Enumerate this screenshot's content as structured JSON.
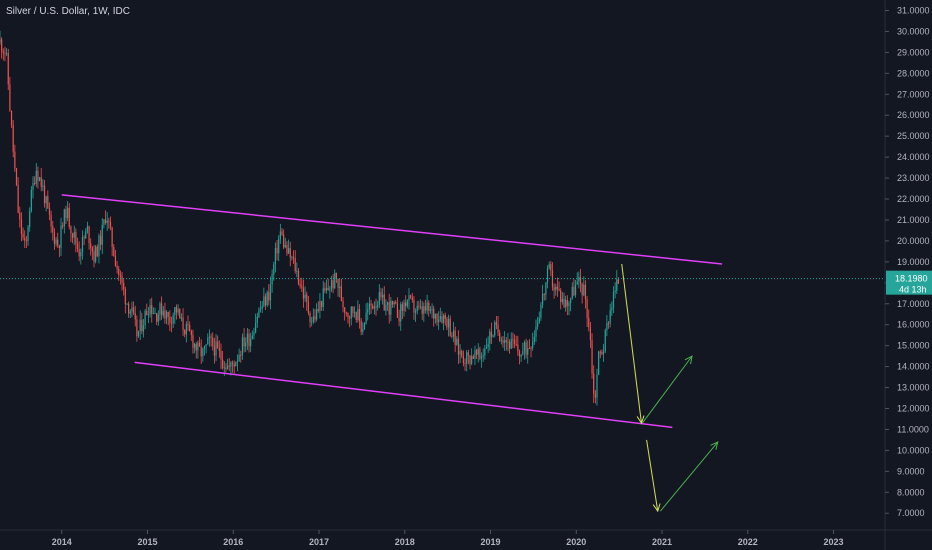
{
  "title": "Silver / U.S. Dollar, 1W, IDC",
  "colors": {
    "background": "#131722",
    "up": "#26a69a",
    "down": "#ef5350",
    "channel": "#e040fb",
    "arrow_down": "#d4e157",
    "arrow_up": "#4caf50",
    "price_line": "#26a69a",
    "axis_text": "#b2b5be"
  },
  "chart_data": {
    "type": "candlestick",
    "symbol": "Silver / U.S. Dollar",
    "interval": "1W",
    "source": "IDC",
    "y_ticks": [
      "7.0000",
      "8.0000",
      "9.0000",
      "10.0000",
      "11.0000",
      "12.0000",
      "13.0000",
      "14.0000",
      "15.0000",
      "16.0000",
      "17.0000",
      "18.0000",
      "19.0000",
      "20.0000",
      "21.0000",
      "22.0000",
      "23.0000",
      "24.0000",
      "25.0000",
      "26.0000",
      "27.0000",
      "28.0000",
      "29.0000",
      "30.0000",
      "31.0000"
    ],
    "x_ticks": [
      "2014",
      "2015",
      "2016",
      "2017",
      "2018",
      "2019",
      "2020",
      "2021",
      "2022",
      "2023"
    ],
    "ylim": [
      6.2,
      31.5
    ],
    "xlim": [
      2013.28,
      2023.6
    ],
    "last_price": "18.1980",
    "countdown": "4d 13h",
    "price_anchors": [
      [
        2013.28,
        29.5
      ],
      [
        2013.35,
        29.0
      ],
      [
        2013.42,
        25.0
      ],
      [
        2013.5,
        21.0
      ],
      [
        2013.58,
        19.5
      ],
      [
        2013.62,
        21.5
      ],
      [
        2013.7,
        23.5
      ],
      [
        2013.78,
        22.5
      ],
      [
        2013.88,
        20.5
      ],
      [
        2013.96,
        19.8
      ],
      [
        2014.05,
        21.5
      ],
      [
        2014.12,
        20.5
      ],
      [
        2014.2,
        19.5
      ],
      [
        2014.3,
        20.5
      ],
      [
        2014.38,
        19.2
      ],
      [
        2014.46,
        20.2
      ],
      [
        2014.52,
        21.4
      ],
      [
        2014.58,
        20.0
      ],
      [
        2014.66,
        18.5
      ],
      [
        2014.75,
        17.2
      ],
      [
        2014.82,
        16.5
      ],
      [
        2014.88,
        15.5
      ],
      [
        2014.95,
        16.2
      ],
      [
        2015.02,
        17.0
      ],
      [
        2015.1,
        16.5
      ],
      [
        2015.18,
        16.8
      ],
      [
        2015.25,
        16.2
      ],
      [
        2015.33,
        16.8
      ],
      [
        2015.4,
        16.0
      ],
      [
        2015.5,
        15.5
      ],
      [
        2015.58,
        14.8
      ],
      [
        2015.65,
        14.6
      ],
      [
        2015.72,
        15.2
      ],
      [
        2015.8,
        14.8
      ],
      [
        2015.88,
        14.3
      ],
      [
        2015.96,
        13.9
      ],
      [
        2016.05,
        14.5
      ],
      [
        2016.12,
        15.2
      ],
      [
        2016.2,
        15.4
      ],
      [
        2016.28,
        16.5
      ],
      [
        2016.35,
        17.0
      ],
      [
        2016.42,
        17.5
      ],
      [
        2016.5,
        19.5
      ],
      [
        2016.55,
        20.4
      ],
      [
        2016.62,
        19.5
      ],
      [
        2016.7,
        19.0
      ],
      [
        2016.78,
        18.0
      ],
      [
        2016.85,
        17.0
      ],
      [
        2016.92,
        16.2
      ],
      [
        2016.98,
        16.6
      ],
      [
        2017.05,
        17.4
      ],
      [
        2017.12,
        17.8
      ],
      [
        2017.2,
        18.2
      ],
      [
        2017.28,
        17.0
      ],
      [
        2017.35,
        16.5
      ],
      [
        2017.42,
        16.8
      ],
      [
        2017.5,
        15.8
      ],
      [
        2017.55,
        16.5
      ],
      [
        2017.62,
        17.0
      ],
      [
        2017.7,
        17.2
      ],
      [
        2017.78,
        16.9
      ],
      [
        2017.86,
        16.8
      ],
      [
        2017.94,
        16.5
      ],
      [
        2018.02,
        17.2
      ],
      [
        2018.1,
        16.8
      ],
      [
        2018.18,
        16.6
      ],
      [
        2018.26,
        16.7
      ],
      [
        2018.34,
        16.5
      ],
      [
        2018.42,
        16.5
      ],
      [
        2018.5,
        16.2
      ],
      [
        2018.56,
        15.5
      ],
      [
        2018.62,
        14.8
      ],
      [
        2018.68,
        14.5
      ],
      [
        2018.74,
        14.4
      ],
      [
        2018.8,
        14.6
      ],
      [
        2018.88,
        14.4
      ],
      [
        2018.96,
        15.2
      ],
      [
        2019.04,
        15.8
      ],
      [
        2019.12,
        15.6
      ],
      [
        2019.2,
        15.2
      ],
      [
        2019.28,
        14.9
      ],
      [
        2019.36,
        14.6
      ],
      [
        2019.44,
        15.0
      ],
      [
        2019.5,
        15.5
      ],
      [
        2019.56,
        16.5
      ],
      [
        2019.62,
        17.5
      ],
      [
        2019.68,
        18.6
      ],
      [
        2019.74,
        17.8
      ],
      [
        2019.8,
        17.5
      ],
      [
        2019.86,
        17.0
      ],
      [
        2019.92,
        17.2
      ],
      [
        2019.98,
        17.8
      ],
      [
        2020.04,
        18.0
      ],
      [
        2020.1,
        17.5
      ],
      [
        2020.16,
        15.5
      ],
      [
        2020.21,
        12.2
      ],
      [
        2020.26,
        14.5
      ],
      [
        2020.32,
        15.0
      ],
      [
        2020.38,
        16.5
      ],
      [
        2020.44,
        17.5
      ],
      [
        2020.5,
        18.2
      ]
    ],
    "channel_upper": [
      [
        2014.0,
        22.2
      ],
      [
        2021.7,
        18.9
      ]
    ],
    "channel_lower": [
      [
        2014.85,
        14.2
      ],
      [
        2021.12,
        11.1
      ]
    ],
    "arrows": [
      {
        "color": "arrow_down",
        "from": [
          2020.53,
          18.9
        ],
        "to": [
          2020.76,
          11.3
        ]
      },
      {
        "color": "arrow_up",
        "from": [
          2020.77,
          11.3
        ],
        "to": [
          2021.35,
          14.5
        ]
      },
      {
        "color": "arrow_down",
        "from": [
          2020.82,
          10.5
        ],
        "to": [
          2020.95,
          7.1
        ]
      },
      {
        "color": "arrow_up",
        "from": [
          2020.98,
          7.1
        ],
        "to": [
          2021.65,
          10.4
        ]
      }
    ]
  }
}
